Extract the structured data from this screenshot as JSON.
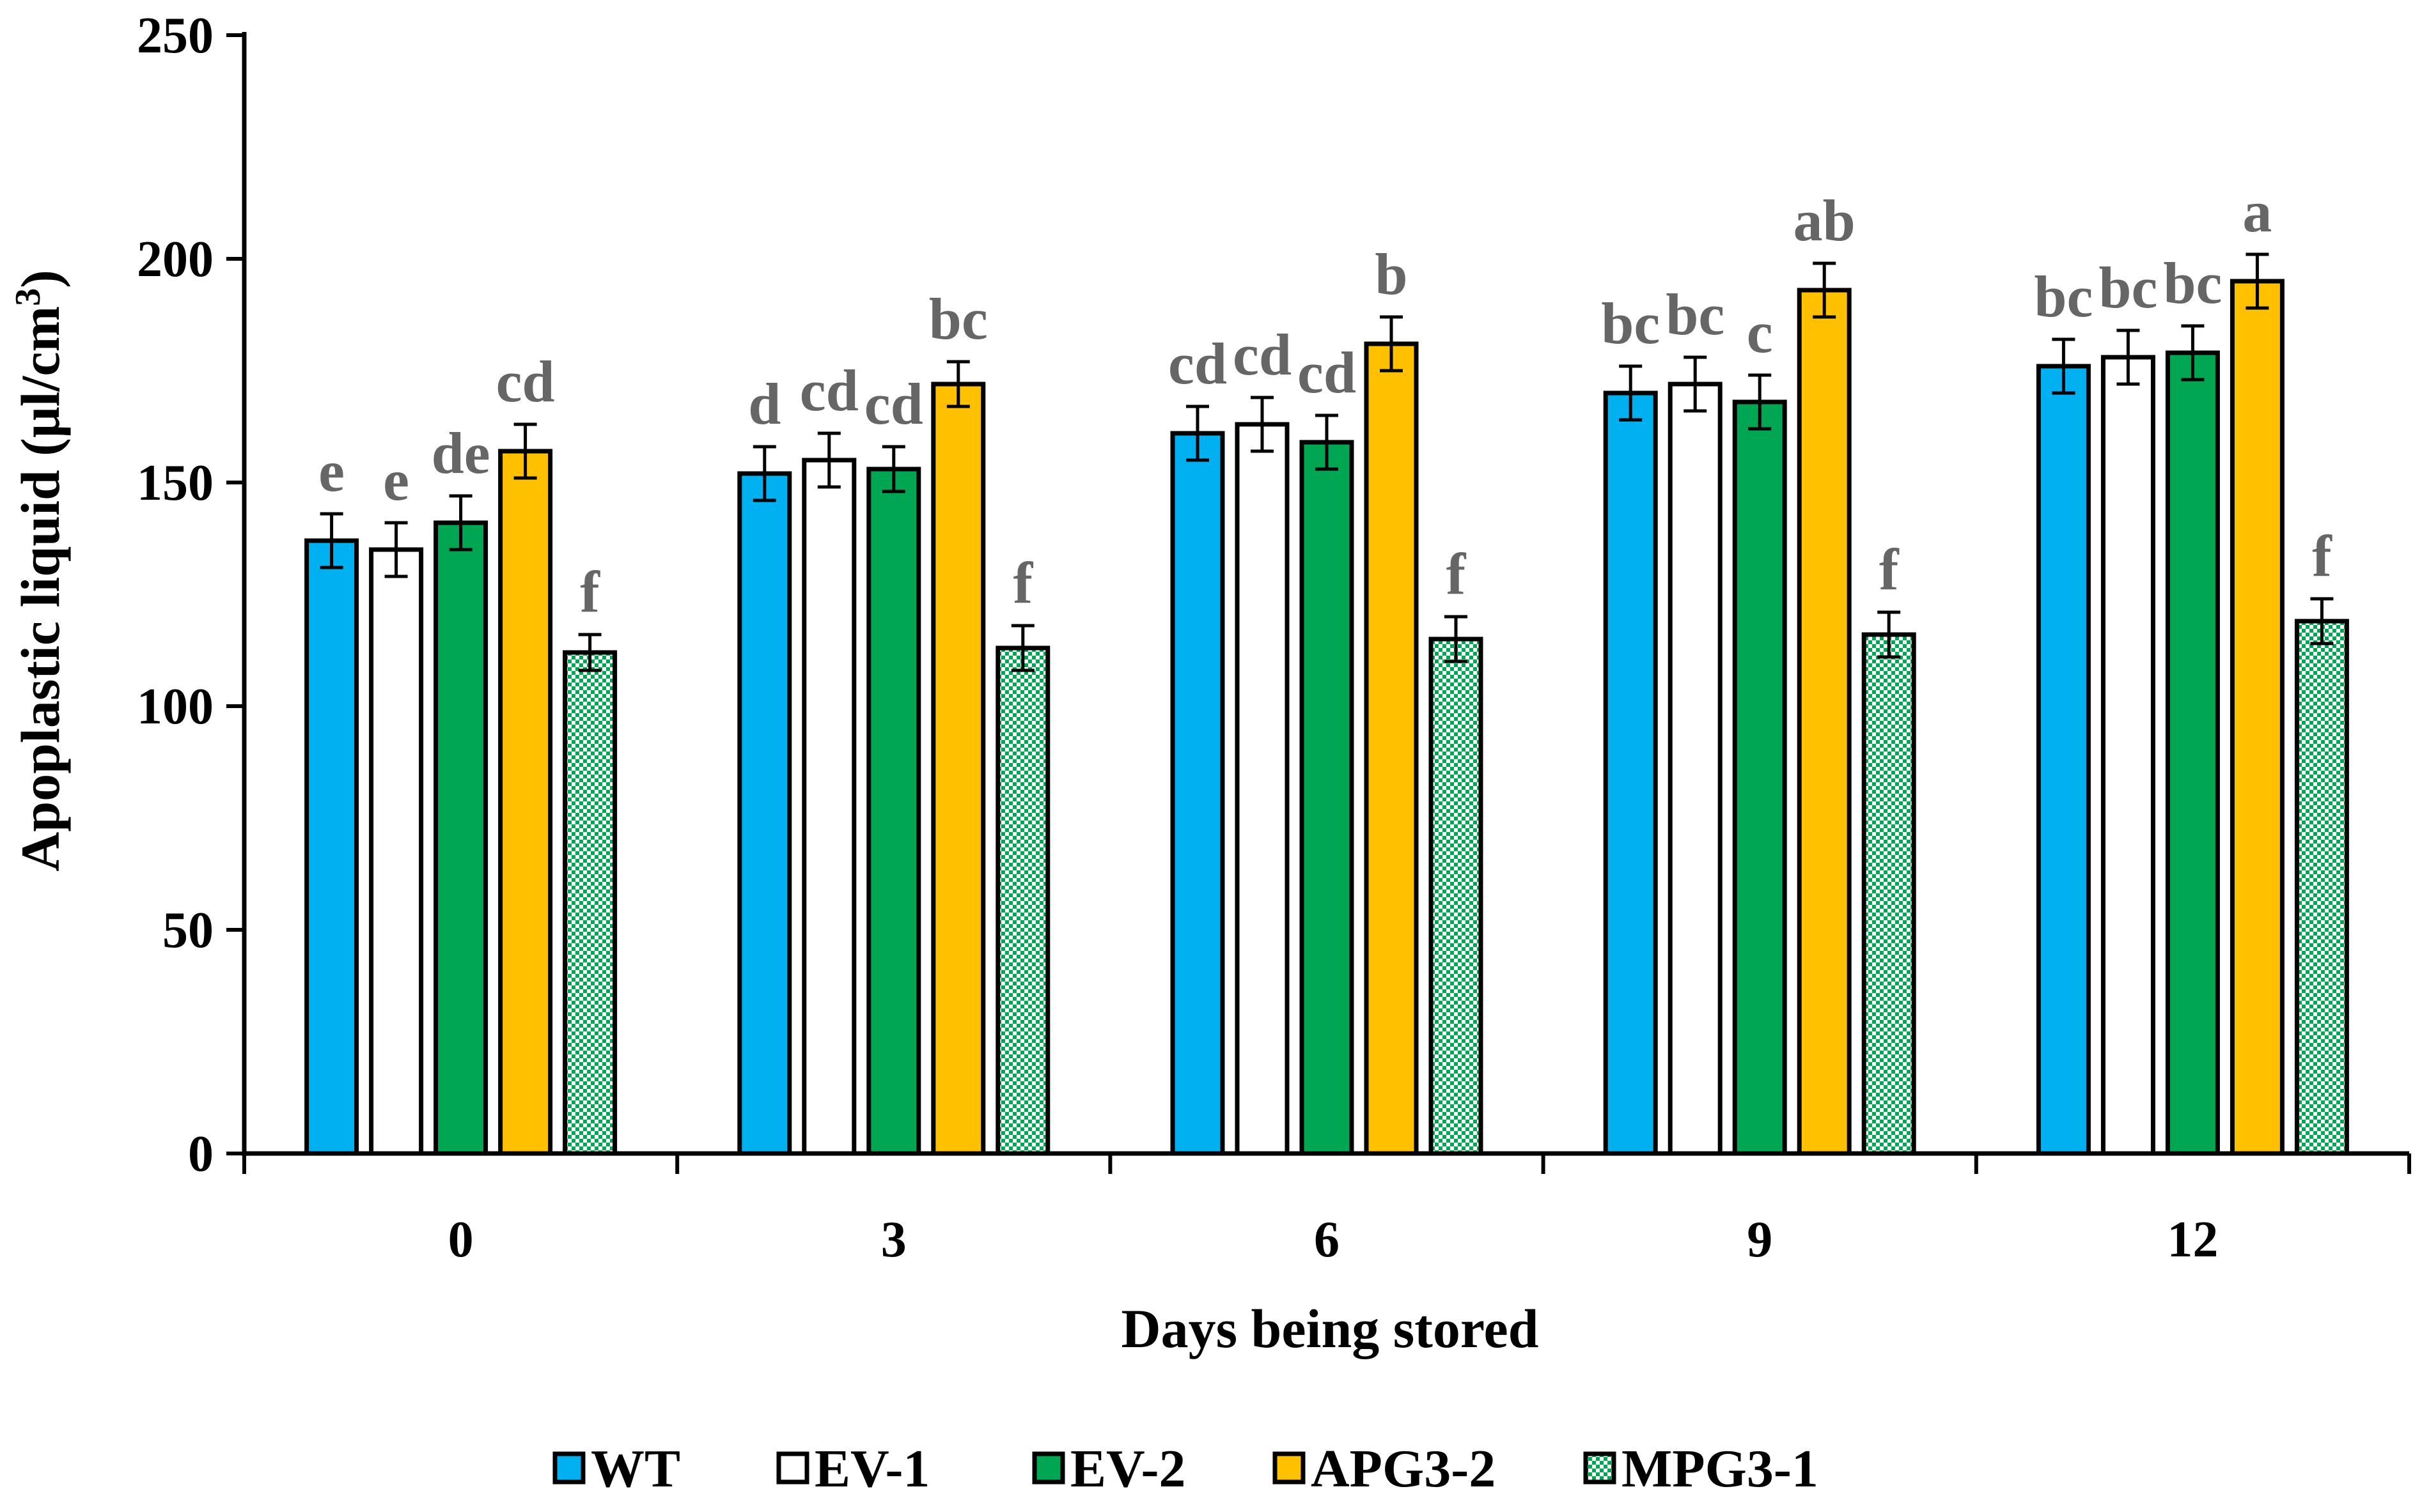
{
  "chart_data": {
    "type": "bar",
    "title": "",
    "xlabel": "Days being stored",
    "ylabel": "Apoplastic liquid (μl/cm",
    "ylabel_sup": "3",
    "ylabel_close": ")",
    "ylim": [
      0,
      250
    ],
    "yticks": [
      0,
      50,
      100,
      150,
      200,
      250
    ],
    "categories": [
      "0",
      "3",
      "6",
      "9",
      "12"
    ],
    "grid": false,
    "legend_position": "bottom",
    "series": [
      {
        "name": "WT",
        "color": "#00B0F0",
        "pattern": "solid",
        "values": [
          137,
          152,
          161,
          170,
          176
        ],
        "errors": [
          6,
          6,
          6,
          6,
          6
        ],
        "labels": [
          "e",
          "d",
          "cd",
          "bc",
          "bc"
        ]
      },
      {
        "name": "EV-1",
        "color": "#FFFFFF",
        "pattern": "solid",
        "values": [
          135,
          155,
          163,
          172,
          178
        ],
        "errors": [
          6,
          6,
          6,
          6,
          6
        ],
        "labels": [
          "e",
          "cd",
          "cd",
          "bc",
          "bc"
        ]
      },
      {
        "name": "EV-2",
        "color": "#00A651",
        "pattern": "solid",
        "values": [
          141,
          153,
          159,
          168,
          179
        ],
        "errors": [
          6,
          5,
          6,
          6,
          6
        ],
        "labels": [
          "de",
          "cd",
          "cd",
          "c",
          "bc"
        ]
      },
      {
        "name": "APG3-2",
        "color": "#FFC000",
        "pattern": "solid",
        "values": [
          157,
          172,
          181,
          193,
          195
        ],
        "errors": [
          6,
          5,
          6,
          6,
          6
        ],
        "labels": [
          "cd",
          "bc",
          "b",
          "ab",
          "a"
        ]
      },
      {
        "name": "MPG3-1",
        "color": "#00A651",
        "pattern": "checker",
        "values": [
          112,
          113,
          115,
          116,
          119
        ],
        "errors": [
          4,
          5,
          5,
          5,
          5
        ],
        "labels": [
          "f",
          "f",
          "f",
          "f",
          "f"
        ]
      }
    ]
  }
}
